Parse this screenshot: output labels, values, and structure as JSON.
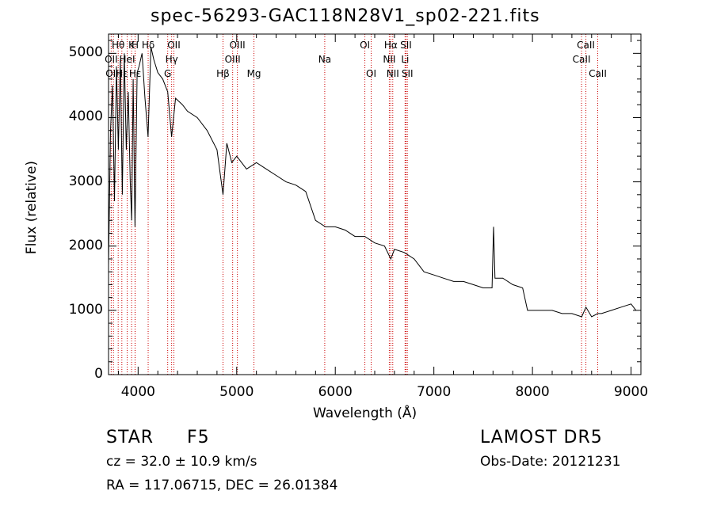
{
  "chart_data": {
    "type": "line",
    "title": "spec-56293-GAC118N28V1_sp02-221.fits",
    "xlabel": "Wavelength (Å)",
    "ylabel": "Flux (relative)",
    "xlim": [
      3700,
      9100
    ],
    "ylim": [
      0,
      5300
    ],
    "xticks": [
      4000,
      5000,
      6000,
      7000,
      8000,
      9000
    ],
    "yticks": [
      0,
      1000,
      2000,
      3000,
      4000,
      5000
    ],
    "grid": false,
    "line_color": "#000000",
    "marker_color": "#cc0000",
    "x": [
      3700,
      3720,
      3740,
      3760,
      3780,
      3800,
      3820,
      3840,
      3860,
      3880,
      3900,
      3920,
      3935,
      3950,
      3968,
      3990,
      4010,
      4040,
      4070,
      4101,
      4130,
      4160,
      4200,
      4250,
      4300,
      4340,
      4380,
      4450,
      4500,
      4600,
      4700,
      4800,
      4861,
      4900,
      4950,
      5000,
      5100,
      5200,
      5300,
      5400,
      5500,
      5600,
      5700,
      5800,
      5900,
      6000,
      6100,
      6200,
      6300,
      6400,
      6500,
      6563,
      6600,
      6700,
      6800,
      6900,
      7000,
      7100,
      7200,
      7300,
      7400,
      7500,
      7590,
      7605,
      7620,
      7700,
      7800,
      7900,
      7950,
      8000,
      8100,
      8200,
      8300,
      8400,
      8500,
      8542,
      8600,
      8662,
      8700,
      8800,
      8900,
      9000,
      9050
    ],
    "y": [
      1700,
      3800,
      4500,
      2700,
      4800,
      3500,
      4900,
      2800,
      5000,
      3500,
      4400,
      3000,
      2400,
      4600,
      2300,
      4700,
      4800,
      5000,
      4300,
      3700,
      5100,
      4900,
      4700,
      4600,
      4400,
      3700,
      4300,
      4200,
      4100,
      4000,
      3800,
      3500,
      2800,
      3600,
      3300,
      3400,
      3200,
      3300,
      3200,
      3100,
      3000,
      2950,
      2850,
      2400,
      2300,
      2300,
      2250,
      2150,
      2150,
      2050,
      2000,
      1800,
      1950,
      1900,
      1800,
      1600,
      1550,
      1500,
      1450,
      1450,
      1400,
      1350,
      1350,
      2300,
      1500,
      1500,
      1400,
      1350,
      1000,
      1000,
      1000,
      1000,
      950,
      950,
      900,
      1050,
      900,
      950,
      950,
      1000,
      1050,
      1100,
      1000
    ],
    "lines": [
      {
        "label": "Hθ",
        "x": 3798,
        "row": 0
      },
      {
        "label": "K",
        "x": 3934,
        "row": 0
      },
      {
        "label": "H",
        "x": 3969,
        "row": 0
      },
      {
        "label": "Hδ",
        "x": 4102,
        "row": 0
      },
      {
        "label": "OII",
        "x": 4363,
        "row": 0
      },
      {
        "label": "OIII",
        "x": 5007,
        "row": 0
      },
      {
        "label": "OI",
        "x": 6300,
        "row": 0
      },
      {
        "label": "Hα",
        "x": 6563,
        "row": 0
      },
      {
        "label": "SII",
        "x": 6717,
        "row": 0
      },
      {
        "label": "CaII",
        "x": 8542,
        "row": 0
      },
      {
        "label": "OII",
        "x": 3727,
        "row": 1
      },
      {
        "label": "HeI",
        "x": 3889,
        "row": 1
      },
      {
        "label": "Hγ",
        "x": 4340,
        "row": 1
      },
      {
        "label": "OIII",
        "x": 4959,
        "row": 1
      },
      {
        "label": "Na",
        "x": 5893,
        "row": 1
      },
      {
        "label": "NII",
        "x": 6548,
        "row": 1
      },
      {
        "label": "Li",
        "x": 6708,
        "row": 1
      },
      {
        "label": "CaII",
        "x": 8498,
        "row": 1
      },
      {
        "label": "OIII",
        "x": 3750,
        "row": 2
      },
      {
        "label": "Hε",
        "x": 3835,
        "row": 2
      },
      {
        "label": "Hε",
        "x": 3970,
        "row": 2
      },
      {
        "label": "G",
        "x": 4300,
        "row": 2
      },
      {
        "label": "Hβ",
        "x": 4861,
        "row": 2
      },
      {
        "label": "Mg",
        "x": 5175,
        "row": 2
      },
      {
        "label": "OI",
        "x": 6364,
        "row": 2
      },
      {
        "label": "NII",
        "x": 6583,
        "row": 2
      },
      {
        "label": "SII",
        "x": 6731,
        "row": 2
      },
      {
        "label": "CaII",
        "x": 8662,
        "row": 2
      }
    ]
  },
  "info": {
    "class": "STAR",
    "subclass": "F5",
    "survey": "LAMOST DR5",
    "cz": "cz = 32.0 ± 10.9 km/s",
    "obs_date": "Obs-Date: 20121231",
    "radec": "RA = 117.06715, DEC =  26.01384"
  }
}
